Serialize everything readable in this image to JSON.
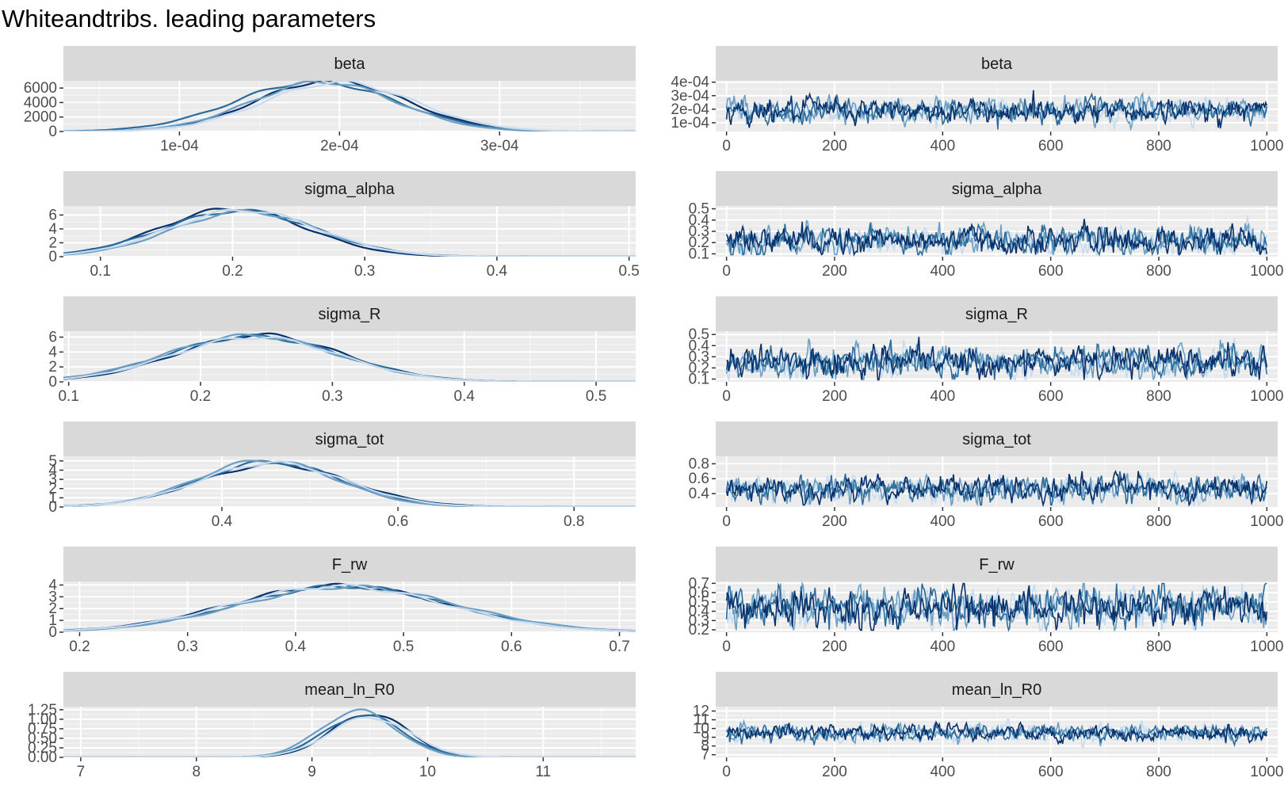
{
  "title": "Whiteandtribs. leading parameters",
  "colors": {
    "panel_bg": "#ebebeb",
    "strip_bg": "#d9d9d9",
    "grid_major": "#ffffff",
    "chains": [
      "#08306b",
      "#2c6c9c",
      "#6a9fc3",
      "#c6dbef"
    ]
  },
  "chart_data": [
    {
      "type": "area",
      "kind": "density",
      "parameter": "beta",
      "xlim": [
        2.75e-05,
        0.000385
      ],
      "ylim": [
        0,
        7000
      ],
      "x_ticks": [
        0.0001,
        0.0002,
        0.0003
      ],
      "x_tick_labels": [
        "1e-04",
        "2e-04",
        "3e-04"
      ],
      "y_ticks": [
        0,
        2000,
        4000,
        6000
      ],
      "y_tick_labels": [
        "0",
        "2000",
        "4000",
        "6000"
      ],
      "peaks": [
        {
          "center": 0.000195,
          "spread": 4.6e-05,
          "height": 7100
        },
        {
          "center": 0.000185,
          "spread": 5e-05,
          "height": 6900
        },
        {
          "center": 0.00019,
          "spread": 4.5e-05,
          "height": 6850
        },
        {
          "center": 0.0002,
          "spread": 4.7e-05,
          "height": 6800
        }
      ]
    },
    {
      "type": "line",
      "kind": "trace",
      "parameter": "beta",
      "xlim": [
        -20,
        1020
      ],
      "ylim": [
        3.5e-05,
        0.00041
      ],
      "x_ticks": [
        0,
        200,
        400,
        600,
        800,
        1000
      ],
      "x_tick_labels": [
        "0",
        "200",
        "400",
        "600",
        "800",
        "1000"
      ],
      "y_ticks": [
        0.0001,
        0.0002,
        0.0003,
        0.0004
      ],
      "y_tick_labels": [
        "1e-04",
        "2e-04",
        "3e-04",
        "4e-04"
      ],
      "mean": 0.00019,
      "spread": 4.2e-05
    },
    {
      "type": "area",
      "kind": "density",
      "parameter": "sigma_alpha",
      "xlim": [
        0.072,
        0.505
      ],
      "ylim": [
        0,
        7.3
      ],
      "x_ticks": [
        0.1,
        0.2,
        0.3,
        0.4,
        0.5
      ],
      "x_tick_labels": [
        "0.1",
        "0.2",
        "0.3",
        "0.4",
        "0.5"
      ],
      "y_ticks": [
        0,
        2,
        4,
        6
      ],
      "y_tick_labels": [
        "0",
        "2",
        "4",
        "6"
      ],
      "peaks": [
        {
          "center": 0.2,
          "spread": 0.055,
          "height": 6.9
        },
        {
          "center": 0.205,
          "spread": 0.058,
          "height": 6.6
        },
        {
          "center": 0.21,
          "spread": 0.055,
          "height": 6.5
        },
        {
          "center": 0.208,
          "spread": 0.056,
          "height": 6.7
        }
      ]
    },
    {
      "type": "line",
      "kind": "trace",
      "parameter": "sigma_alpha",
      "xlim": [
        -20,
        1020
      ],
      "ylim": [
        0.075,
        0.525
      ],
      "x_ticks": [
        0,
        200,
        400,
        600,
        800,
        1000
      ],
      "x_tick_labels": [
        "0",
        "200",
        "400",
        "600",
        "800",
        "1000"
      ],
      "y_ticks": [
        0.1,
        0.2,
        0.3,
        0.4,
        0.5
      ],
      "y_tick_labels": [
        "0.1",
        "0.2",
        "0.3",
        "0.4",
        "0.5"
      ],
      "mean": 0.22,
      "spread": 0.06
    },
    {
      "type": "area",
      "kind": "density",
      "parameter": "sigma_R",
      "xlim": [
        0.096,
        0.53
      ],
      "ylim": [
        0,
        6.8
      ],
      "x_ticks": [
        0.1,
        0.2,
        0.3,
        0.4,
        0.5
      ],
      "x_tick_labels": [
        "0.1",
        "0.2",
        "0.3",
        "0.4",
        "0.5"
      ],
      "y_ticks": [
        0,
        2,
        4,
        6
      ],
      "y_tick_labels": [
        "0",
        "2",
        "4",
        "6"
      ],
      "peaks": [
        {
          "center": 0.245,
          "spread": 0.062,
          "height": 6.3
        },
        {
          "center": 0.24,
          "spread": 0.065,
          "height": 6.1
        },
        {
          "center": 0.238,
          "spread": 0.064,
          "height": 6.2
        },
        {
          "center": 0.242,
          "spread": 0.063,
          "height": 6.0
        }
      ]
    },
    {
      "type": "line",
      "kind": "trace",
      "parameter": "sigma_R",
      "xlim": [
        -20,
        1020
      ],
      "ylim": [
        0.075,
        0.53
      ],
      "x_ticks": [
        0,
        200,
        400,
        600,
        800,
        1000
      ],
      "x_tick_labels": [
        "0",
        "200",
        "400",
        "600",
        "800",
        "1000"
      ],
      "y_ticks": [
        0.1,
        0.2,
        0.3,
        0.4,
        0.5
      ],
      "y_tick_labels": [
        "0.1",
        "0.2",
        "0.3",
        "0.4",
        "0.5"
      ],
      "mean": 0.25,
      "spread": 0.065
    },
    {
      "type": "area",
      "kind": "density",
      "parameter": "sigma_tot",
      "xlim": [
        0.22,
        0.87
      ],
      "ylim": [
        0,
        5.5
      ],
      "x_ticks": [
        0.4,
        0.6,
        0.8
      ],
      "x_tick_labels": [
        "0.4",
        "0.6",
        "0.8"
      ],
      "y_ticks": [
        0,
        1,
        2,
        3,
        4,
        5
      ],
      "y_tick_labels": [
        "0",
        "1",
        "2",
        "3",
        "4",
        "5"
      ],
      "peaks": [
        {
          "center": 0.46,
          "spread": 0.085,
          "height": 4.6
        },
        {
          "center": 0.455,
          "spread": 0.08,
          "height": 4.9
        },
        {
          "center": 0.45,
          "spread": 0.078,
          "height": 5.1
        },
        {
          "center": 0.458,
          "spread": 0.082,
          "height": 4.8
        }
      ]
    },
    {
      "type": "line",
      "kind": "trace",
      "parameter": "sigma_tot",
      "xlim": [
        -20,
        1020
      ],
      "ylim": [
        0.22,
        0.9
      ],
      "x_ticks": [
        0,
        200,
        400,
        600,
        800,
        1000
      ],
      "x_tick_labels": [
        "0",
        "200",
        "400",
        "600",
        "800",
        "1000"
      ],
      "y_ticks": [
        0.4,
        0.6,
        0.8
      ],
      "y_tick_labels": [
        "0.4",
        "0.6",
        "0.8"
      ],
      "mean": 0.46,
      "spread": 0.08
    },
    {
      "type": "area",
      "kind": "density",
      "parameter": "F_rw",
      "xlim": [
        0.185,
        0.715
      ],
      "ylim": [
        0,
        4.3
      ],
      "x_ticks": [
        0.2,
        0.3,
        0.4,
        0.5,
        0.6,
        0.7
      ],
      "x_tick_labels": [
        "0.2",
        "0.3",
        "0.4",
        "0.5",
        "0.6",
        "0.7"
      ],
      "y_ticks": [
        0,
        1,
        2,
        3,
        4
      ],
      "y_tick_labels": [
        "0",
        "1",
        "2",
        "3",
        "4"
      ],
      "peaks": [
        {
          "center": 0.44,
          "spread": 0.1,
          "height": 3.95
        },
        {
          "center": 0.445,
          "spread": 0.098,
          "height": 3.9
        },
        {
          "center": 0.45,
          "spread": 0.1,
          "height": 3.85
        },
        {
          "center": 0.44,
          "spread": 0.099,
          "height": 3.9
        }
      ]
    },
    {
      "type": "line",
      "kind": "trace",
      "parameter": "F_rw",
      "xlim": [
        -20,
        1020
      ],
      "ylim": [
        0.175,
        0.72
      ],
      "x_ticks": [
        0,
        200,
        400,
        600,
        800,
        1000
      ],
      "x_tick_labels": [
        "0",
        "200",
        "400",
        "600",
        "800",
        "1000"
      ],
      "y_ticks": [
        0.2,
        0.3,
        0.4,
        0.5,
        0.6,
        0.7
      ],
      "y_tick_labels": [
        "0.2",
        "0.3",
        "0.4",
        "0.5",
        "0.6",
        "0.7"
      ],
      "mean": 0.45,
      "spread": 0.1
    },
    {
      "type": "area",
      "kind": "density",
      "parameter": "mean_ln_R0",
      "xlim": [
        6.85,
        11.8
      ],
      "ylim": [
        0,
        1.33
      ],
      "x_ticks": [
        7,
        8,
        9,
        10,
        11
      ],
      "x_tick_labels": [
        "7",
        "8",
        "9",
        "10",
        "11"
      ],
      "y_ticks": [
        0,
        0.25,
        0.5,
        0.75,
        1,
        1.25
      ],
      "y_tick_labels": [
        "0.00",
        "0.25",
        "0.50",
        "0.75",
        "1.00",
        "1.25"
      ],
      "peaks": [
        {
          "center": 9.5,
          "spread": 0.33,
          "height": 1.15
        },
        {
          "center": 9.45,
          "spread": 0.34,
          "height": 1.1
        },
        {
          "center": 9.4,
          "spread": 0.33,
          "height": 1.22
        },
        {
          "center": 9.5,
          "spread": 0.35,
          "height": 1.05
        }
      ]
    },
    {
      "type": "line",
      "kind": "trace",
      "parameter": "mean_ln_R0",
      "xlim": [
        -20,
        1020
      ],
      "ylim": [
        6.7,
        12.5
      ],
      "x_ticks": [
        0,
        200,
        400,
        600,
        800,
        1000
      ],
      "x_tick_labels": [
        "0",
        "200",
        "400",
        "600",
        "800",
        "1000"
      ],
      "y_ticks": [
        7,
        8,
        9,
        10,
        11,
        12
      ],
      "y_tick_labels": [
        "7",
        "8",
        "9",
        "10",
        "11",
        "12"
      ],
      "mean": 9.5,
      "spread": 0.45
    }
  ]
}
